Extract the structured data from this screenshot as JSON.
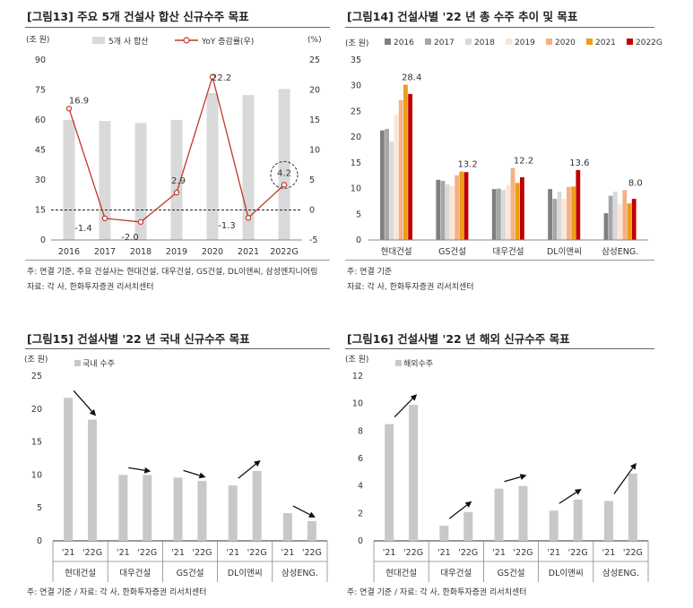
{
  "fig13": {
    "title": "[그림13] 주요 5개 건설사 합산 신규수주 목표",
    "unit_left": "(조 원)",
    "unit_right": "(%)",
    "legend_bar": "5개 사 합산",
    "legend_line": "YoY 증감률(우)",
    "note1": "주: 연결 기준, 주요 건설사는 현대건설, 대우건설, GS건설, DL이앤씨, 삼성엔지니어링",
    "note2": "자료: 각 사, 한화투자증권 리서치센터"
  },
  "fig14": {
    "title": "[그림14] 건설사별 '22 년 총 수주 추이 및 목표",
    "unit": "(조 원)",
    "note1": "주: 연결 기준",
    "note2": "자료: 각 사, 한화투자증권 리서치센터"
  },
  "fig15": {
    "title": "[그림15] 건설사별 '22 년 국내 신규수주 목표",
    "unit": "(조 원)",
    "legend": "국내 수주",
    "note1": "주: 연결 기준 / 자료: 각 사, 한화투자증권 리서치센터"
  },
  "fig16": {
    "title": "[그림16] 건설사별 '22 년 해외 신규수주 목표",
    "unit": "(조 원)",
    "legend": "해외수주",
    "note1": "주: 연결 기준 / 자료: 각 사, 한화투자증권 리서치센터"
  },
  "chart_data": [
    {
      "id": "fig13",
      "type": "bar+line",
      "categories": [
        "2016",
        "2017",
        "2018",
        "2019",
        "2020",
        "2021",
        "2022G"
      ],
      "series": [
        {
          "name": "5개 사 합산",
          "type": "bar",
          "axis": "left",
          "values": [
            60,
            59.5,
            58.5,
            60,
            73.5,
            72.5,
            75.5
          ]
        },
        {
          "name": "YoY 증감률(우)",
          "type": "line",
          "axis": "right",
          "values": [
            16.9,
            -1.4,
            -2.0,
            2.9,
            22.2,
            -1.3,
            4.2
          ]
        }
      ],
      "data_labels": [
        "16.9",
        "-1.4",
        "-2.0",
        "2.9",
        "22.2",
        "-1.3",
        "4.2"
      ],
      "ylim_left": [
        0,
        90
      ],
      "yticks_left": [
        "0",
        "15",
        "30",
        "45",
        "60",
        "75",
        "90"
      ],
      "ylim_right": [
        -5,
        25
      ],
      "yticks_right": [
        "-5",
        "0",
        "5",
        "10",
        "15",
        "20",
        "25"
      ],
      "colors": {
        "bar": "#d9d9d9",
        "line": "#c0392b"
      }
    },
    {
      "id": "fig14",
      "type": "bar",
      "categories": [
        "현대건설",
        "GS건설",
        "대우건설",
        "DL이앤씨",
        "삼성ENG."
      ],
      "series": [
        {
          "name": "2016",
          "color": "#7f7f7f",
          "values": [
            21.3,
            11.7,
            9.9,
            9.9,
            5.2
          ]
        },
        {
          "name": "2017",
          "color": "#a6a6a6",
          "values": [
            21.6,
            11.5,
            10.0,
            8.0,
            8.6
          ]
        },
        {
          "name": "2018",
          "color": "#d9d9d9",
          "values": [
            19.1,
            10.8,
            9.7,
            9.4,
            9.4
          ]
        },
        {
          "name": "2019",
          "color": "#fbe5d6",
          "values": [
            24.3,
            10.5,
            10.7,
            8.0,
            6.9
          ]
        },
        {
          "name": "2020",
          "color": "#f4b183",
          "values": [
            27.2,
            12.6,
            14.0,
            10.3,
            9.7
          ]
        },
        {
          "name": "2021",
          "color": "#ed9d1a",
          "values": [
            30.2,
            13.3,
            11.1,
            10.4,
            7.1
          ]
        },
        {
          "name": "2022G",
          "color": "#c00000",
          "values": [
            28.4,
            13.2,
            12.2,
            13.6,
            8.0
          ]
        }
      ],
      "data_labels": [
        "28.4",
        "13.2",
        "12.2",
        "13.6",
        "8.0"
      ],
      "ylim": [
        0,
        35
      ],
      "yticks": [
        "0",
        "5",
        "10",
        "15",
        "20",
        "25",
        "30",
        "35"
      ]
    },
    {
      "id": "fig15",
      "type": "bar",
      "groups": [
        "현대건설",
        "대우건설",
        "GS건설",
        "DL이앤씨",
        "삼성ENG."
      ],
      "categories": [
        "'21",
        "'22G"
      ],
      "series": [
        {
          "name": "국내 수주",
          "color": "#c8c8c8",
          "values": [
            [
              21.7,
              18.4
            ],
            [
              10.0,
              10.0
            ],
            [
              9.6,
              9.1
            ],
            [
              8.4,
              10.6
            ],
            [
              4.2,
              3.0
            ]
          ]
        }
      ],
      "ylim": [
        0,
        25
      ],
      "yticks": [
        "0",
        "5",
        "10",
        "15",
        "20",
        "25"
      ]
    },
    {
      "id": "fig16",
      "type": "bar",
      "groups": [
        "현대건설",
        "대우건설",
        "GS건설",
        "DL이앤씨",
        "삼성ENG."
      ],
      "categories": [
        "'21",
        "'22G"
      ],
      "series": [
        {
          "name": "해외수주",
          "color": "#c8c8c8",
          "values": [
            [
              8.5,
              9.9
            ],
            [
              1.1,
              2.1
            ],
            [
              3.8,
              4.0
            ],
            [
              2.2,
              3.0
            ],
            [
              2.9,
              4.9
            ]
          ]
        }
      ],
      "ylim": [
        0,
        12
      ],
      "yticks": [
        "0",
        "2",
        "4",
        "6",
        "8",
        "10",
        "12"
      ]
    }
  ]
}
